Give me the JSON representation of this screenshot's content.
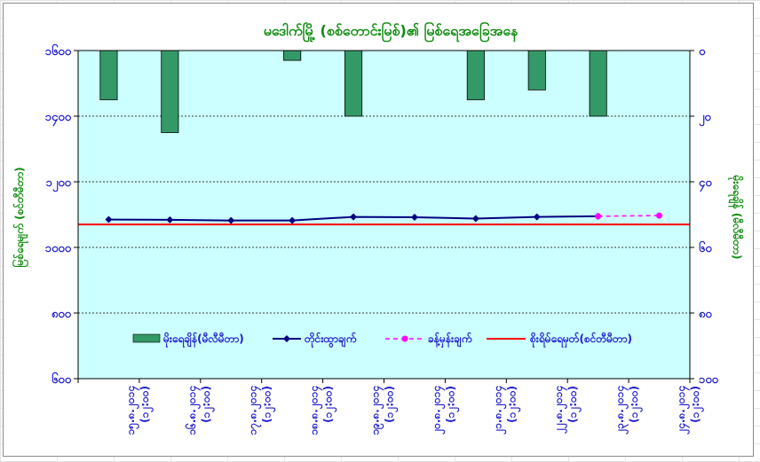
{
  "chart_data": {
    "type": "line",
    "title": "မဒေါက်မြို့ (စစ်တောင်းမြစ်)၏ မြစ်ရေအခြေအနေ",
    "ylabel_left": "မြစ်ရေမျက် (စင်တီမီတာ)",
    "ylabel_right": "မိုးရေချိန် (မီလီမီတာ)",
    "ylim_left": [
      600,
      1600
    ],
    "yticks_left": [
      600,
      800,
      1000,
      1200,
      1400,
      1600
    ],
    "yticks_left_labels": [
      "၆၀၀",
      "၈၀၀",
      "၁၀၀၀",
      "၁၂၀၀",
      "၁၄၀၀",
      "၁၆၀၀"
    ],
    "ylim_right": [
      0,
      100
    ],
    "yticks_right": [
      0,
      20,
      40,
      60,
      80,
      100
    ],
    "yticks_right_labels": [
      "၀",
      "၂၀",
      "၄၀",
      "၆၀",
      "၈၀",
      "၁၀၀"
    ],
    "categories": [
      "၁၅.၈.၂၀၁၄ (၁၂:၀၀)",
      "၁၆.၈.၂၀၁၄ (၁၂:၀၀)",
      "၁၇.၈.၂၀၁၄ (၁၂:၀၀)",
      "၁၈.၈.၂၀၁၄ (၁၂:၀၀)",
      "၁၉.၈.၂၀၁၄ (၁၂:၀၀)",
      "၂၀.၈.၂၀၁၄ (၁၂:၀၀)",
      "၂၁.၈.၂၀၁၄ (၁၂:၀၀)",
      "၂၂.၈.၂၀၁၄ (၁၂:၀၀)",
      "၂၃.၈.၂၀၁၄ (၁၂:၀၀)",
      "၂၄.၈.၂၀၁၄ (၁၂:၀၀)"
    ],
    "series": [
      {
        "name": "မိုးရေချိန်(မီလီမီတာ)",
        "type": "bar",
        "axis": "right",
        "color": "#339966",
        "values": [
          15,
          25,
          0,
          3,
          20,
          0,
          15,
          12,
          20,
          0
        ]
      },
      {
        "name": "တိုင်းထွာချက်",
        "type": "line",
        "axis": "left",
        "color": "#000080",
        "values": [
          1085,
          1084,
          1082,
          1082,
          1093,
          1092,
          1088,
          1093,
          1095,
          null
        ]
      },
      {
        "name": "ခန့်မှန်းချက်",
        "type": "line-dashed",
        "axis": "left",
        "color": "#ff00ff",
        "values": [
          null,
          null,
          null,
          null,
          null,
          null,
          null,
          null,
          1095,
          1097
        ]
      },
      {
        "name": "စိုးရိမ်ရေမှတ်(စင်တီမီတာ)",
        "type": "hline",
        "axis": "left",
        "color": "#ff0000",
        "value": 1070
      }
    ],
    "grid": true,
    "legend_position": "bottom-inside"
  }
}
